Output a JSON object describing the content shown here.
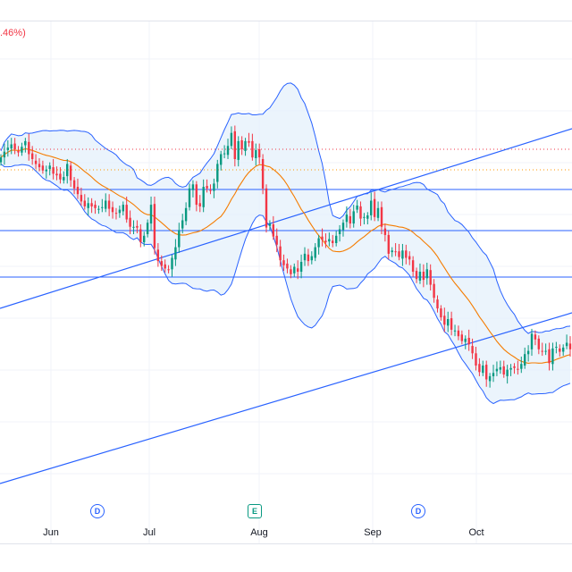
{
  "header": {
    "change_fragment": ".46%)"
  },
  "colors": {
    "up": "#089981",
    "down": "#f23645",
    "band_line": "#2962ff",
    "band_fill": "#e3effb",
    "ma_line": "#f57c00",
    "channel": "#2962ff",
    "hline": "#2962ff",
    "dotted_red": "#f23645",
    "dotted_orange": "#ff9800",
    "grid": "#f0f3fa"
  },
  "events": [
    {
      "type": "dividend",
      "label": "D"
    },
    {
      "type": "earnings",
      "label": "E"
    },
    {
      "type": "dividend",
      "label": "D"
    }
  ],
  "chart_data": {
    "type": "candlestick",
    "x_axis_labels": [
      "Jun",
      "Jul",
      "Aug",
      "Sep",
      "Oct"
    ],
    "y_range": [
      0,
      600
    ],
    "price_series": [
      440,
      447,
      452,
      456,
      450,
      446,
      453,
      460,
      444,
      438,
      432,
      428,
      424,
      425,
      430,
      420,
      418,
      413,
      416,
      432,
      412,
      402,
      395,
      386,
      380,
      384,
      380,
      378,
      377,
      379,
      387,
      377,
      373,
      371,
      376,
      382,
      364,
      355,
      355,
      354,
      336,
      344,
      360,
      382,
      329,
      313,
      307,
      304,
      302,
      317,
      330,
      351,
      363,
      378,
      402,
      407,
      382,
      380,
      404,
      402,
      399,
      408,
      432,
      444,
      445,
      454,
      470,
      438,
      460,
      450,
      460,
      458,
      440,
      449,
      440,
      402,
      354,
      359,
      343,
      333,
      314,
      308,
      304,
      297,
      306,
      300,
      312,
      322,
      313,
      319,
      330,
      341,
      339,
      336,
      340,
      335,
      344,
      352,
      360,
      370,
      359,
      374,
      381,
      365,
      367,
      369,
      387,
      367,
      378,
      355,
      345,
      322,
      326,
      324,
      318,
      326,
      317,
      315,
      300,
      291,
      300,
      290,
      303,
      284,
      268,
      255,
      244,
      235,
      242,
      229,
      228,
      221,
      215,
      218,
      211,
      200,
      185,
      177,
      185,
      168,
      172,
      176,
      181,
      183,
      174,
      180,
      182,
      182,
      180,
      187,
      199,
      203,
      224,
      217,
      205,
      202,
      203,
      188,
      206,
      208,
      202,
      207,
      213,
      205
    ]
  }
}
